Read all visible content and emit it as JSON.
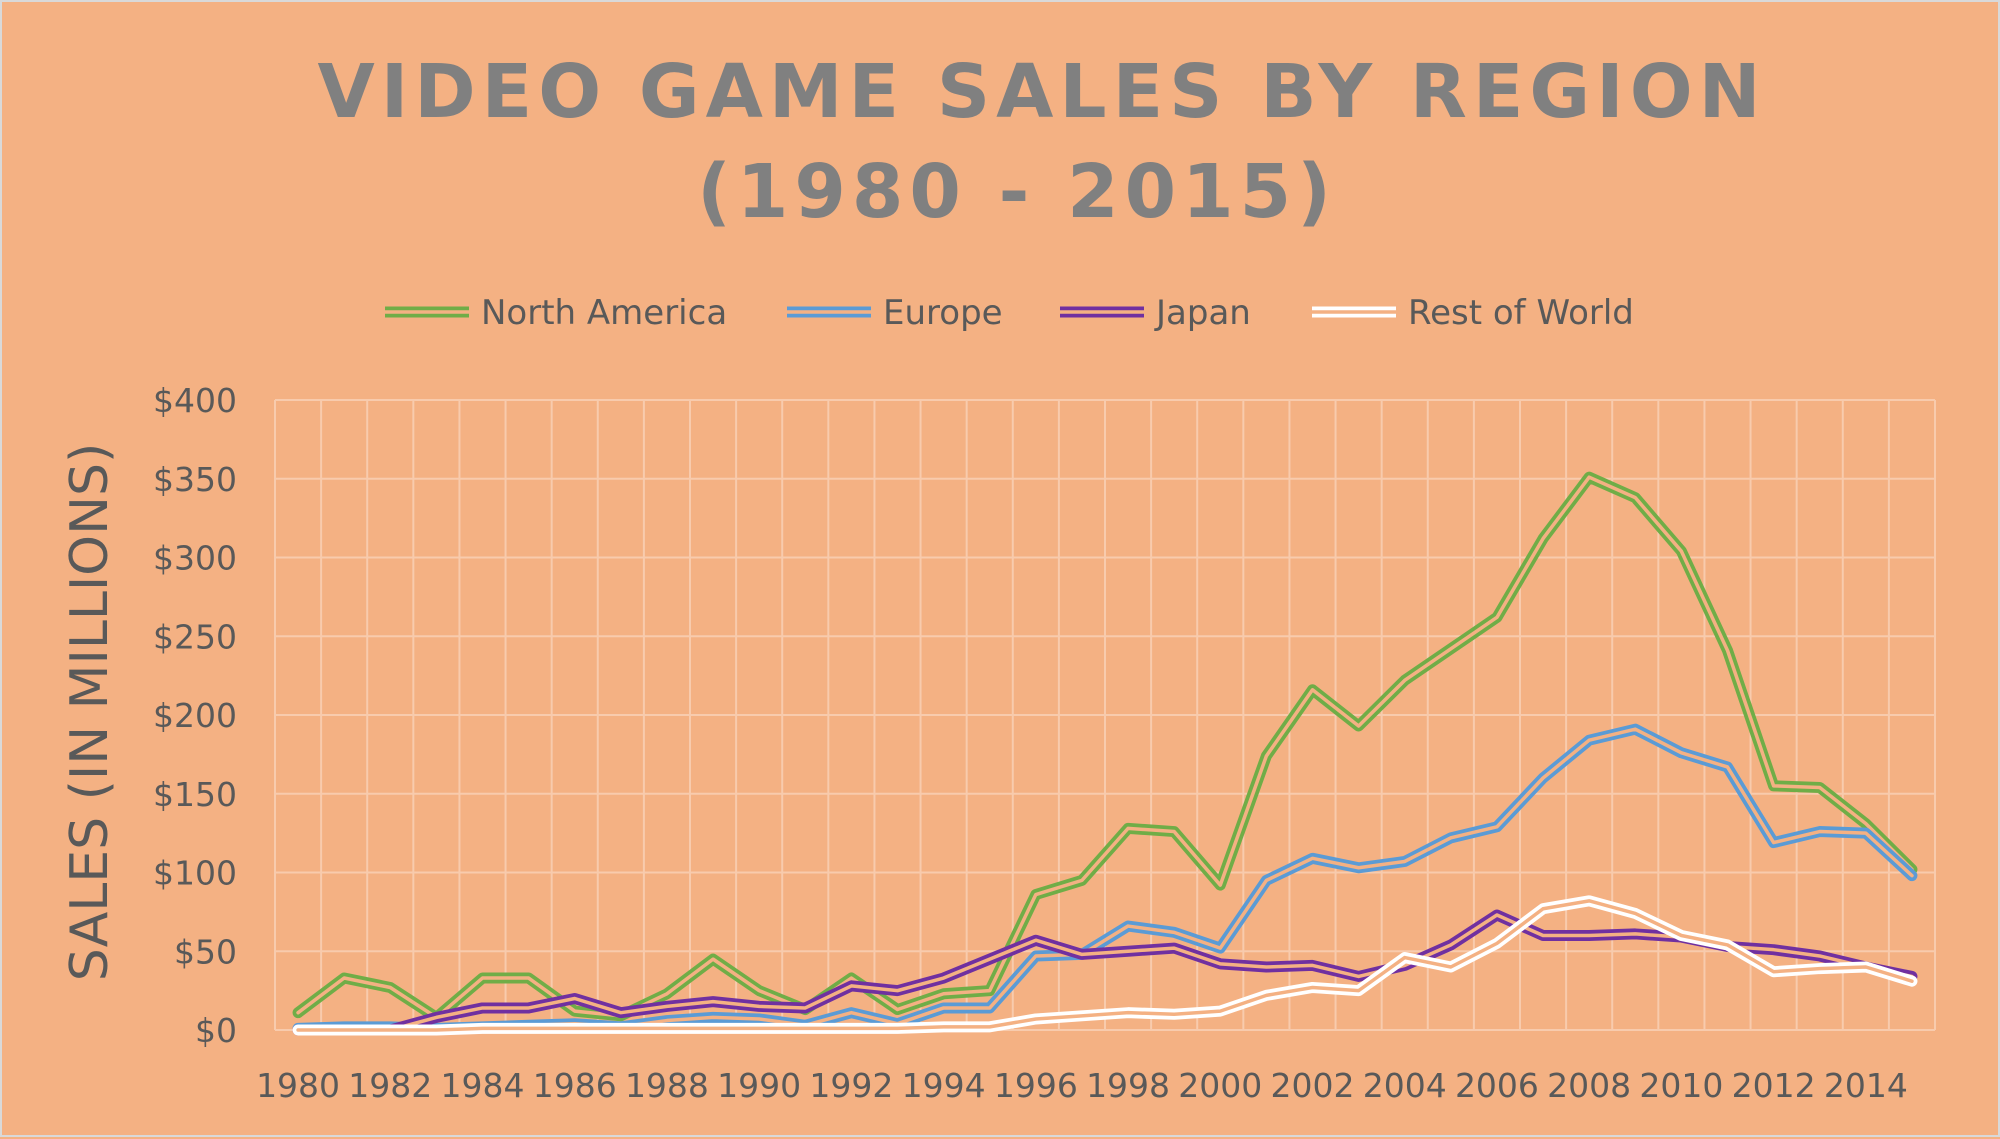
{
  "chart_data": {
    "type": "line",
    "title": "VIDEO GAME SALES BY REGION",
    "subtitle": "(1980 - 2015)",
    "xlabel": "",
    "ylabel": "SALES (IN MILLIONS)",
    "ylim": [
      0,
      400
    ],
    "y_ticks": [
      "$0",
      "$50",
      "$100",
      "$150",
      "$200",
      "$250",
      "$300",
      "$350",
      "$400"
    ],
    "x_ticks": [
      "1980",
      "1982",
      "1984",
      "1986",
      "1988",
      "1990",
      "1992",
      "1994",
      "1996",
      "1998",
      "2000",
      "2002",
      "2004",
      "2006",
      "2008",
      "2010",
      "2012",
      "2014"
    ],
    "grid": true,
    "legend_position": "top",
    "line_style": "double",
    "x": [
      1980,
      1981,
      1982,
      1983,
      1984,
      1985,
      1986,
      1987,
      1988,
      1989,
      1990,
      1991,
      1992,
      1993,
      1994,
      1995,
      1996,
      1997,
      1998,
      1999,
      2000,
      2001,
      2002,
      2003,
      2004,
      2005,
      2006,
      2007,
      2008,
      2009,
      2010,
      2011,
      2012,
      2013,
      2014,
      2015
    ],
    "series": [
      {
        "name": "North America",
        "color": "#70ad47",
        "values": [
          11,
          33,
          27,
          8,
          33,
          33,
          12,
          9,
          23,
          45,
          25,
          13,
          33,
          13,
          23,
          25,
          86,
          95,
          128,
          126,
          92,
          174,
          216,
          193,
          222,
          242,
          262,
          312,
          351,
          338,
          304,
          241,
          155,
          154,
          131,
          102
        ]
      },
      {
        "name": "Europe",
        "color": "#5b9bd5",
        "values": [
          1,
          2,
          2,
          1,
          2,
          3,
          4,
          2,
          6,
          8,
          7,
          3,
          11,
          4,
          14,
          14,
          47,
          48,
          66,
          62,
          52,
          95,
          109,
          103,
          107,
          122,
          129,
          160,
          184,
          191,
          176,
          167,
          119,
          126,
          125,
          98
        ]
      },
      {
        "name": "Japan",
        "color": "#7030a0",
        "values": [
          0,
          0,
          0,
          8,
          14,
          14,
          20,
          11,
          15,
          18,
          15,
          14,
          28,
          25,
          33,
          45,
          57,
          48,
          50,
          52,
          42,
          40,
          41,
          34,
          41,
          54,
          73,
          60,
          60,
          61,
          59,
          53,
          51,
          47,
          40,
          34
        ]
      },
      {
        "name": "Rest of World",
        "color": "#ffffff",
        "values": [
          0,
          0,
          0,
          0,
          1,
          1,
          1,
          1,
          1,
          1,
          1,
          1,
          1,
          1,
          2,
          2,
          7,
          9,
          11,
          10,
          12,
          22,
          27,
          25,
          46,
          40,
          55,
          77,
          82,
          74,
          60,
          54,
          37,
          39,
          40,
          31
        ]
      }
    ]
  }
}
